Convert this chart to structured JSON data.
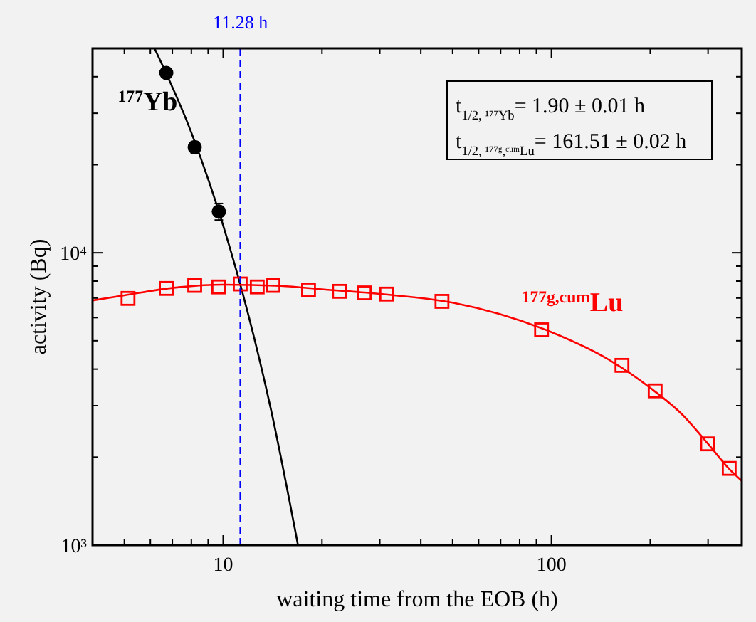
{
  "chart_data": {
    "type": "scatter",
    "xlabel": "waiting time from the EOB (h)",
    "ylabel": "activity (Bq)",
    "log": "xy",
    "xlim": [
      4,
      380
    ],
    "ylim": [
      1000,
      50000
    ],
    "xticks": [
      {
        "value": 5,
        "label": null
      },
      {
        "value": 6,
        "label": null
      },
      {
        "value": 7,
        "label": null
      },
      {
        "value": 8,
        "label": null
      },
      {
        "value": 9,
        "label": null
      },
      10,
      {
        "value": 20,
        "label": null
      },
      {
        "value": 30,
        "label": null
      },
      {
        "value": 40,
        "label": null
      },
      {
        "value": 50,
        "label": null
      },
      {
        "value": 60,
        "label": null
      },
      {
        "value": 70,
        "label": null
      },
      {
        "value": 80,
        "label": null
      },
      {
        "value": 90,
        "label": null
      },
      100,
      {
        "value": 200,
        "label": null
      },
      {
        "value": 300,
        "label": null
      }
    ],
    "yticks": [
      {
        "value": 1000,
        "label": "10³"
      },
      {
        "value": 2000,
        "label": null
      },
      {
        "value": 3000,
        "label": null
      },
      {
        "value": 4000,
        "label": null
      },
      {
        "value": 5000,
        "label": null
      },
      {
        "value": 6000,
        "label": null
      },
      {
        "value": 7000,
        "label": null
      },
      {
        "value": 8000,
        "label": null
      },
      {
        "value": 9000,
        "label": null
      },
      {
        "value": 10000,
        "label": "10⁴"
      },
      {
        "value": 20000,
        "label": null
      },
      {
        "value": 30000,
        "label": null
      },
      {
        "value": 40000,
        "label": null
      }
    ],
    "series": [
      {
        "name": "$^{177}$Yb",
        "marker": "circle",
        "color": "#000000",
        "x": [
          6.71,
          8.19,
          9.7
        ],
        "values": [
          41200,
          22960,
          13840
        ],
        "errors": [
          1200,
          1000,
          900
        ]
      },
      {
        "type": "line",
        "marker": "none",
        "color": "#000000",
        "x": [
          6.18,
          8,
          10,
          12,
          14,
          16.9
        ],
        "values": [
          50000,
          25750,
          12390,
          5980,
          2890,
          1000
        ]
      },
      {
        "name": "$^{177g,cum}$Lu",
        "marker": "square",
        "color": "#ff0000",
        "x": [
          5.13,
          6.71,
          8.19,
          9.7,
          11.27,
          12.7,
          14.19,
          18.2,
          22.6,
          26.9,
          31.5,
          46.4,
          93.3,
          164,
          207,
          299,
          348
        ],
        "values": [
          6980,
          7550,
          7730,
          7640,
          7820,
          7640,
          7730,
          7460,
          7380,
          7290,
          7220,
          6820,
          5450,
          4120,
          3370,
          2220,
          1830
        ]
      },
      {
        "type": "line",
        "marker": "none",
        "color": "#ff0000",
        "x": [
          4,
          5,
          7,
          10,
          15,
          20,
          30,
          50,
          100,
          150,
          200,
          250,
          300,
          350,
          380
        ],
        "values": [
          6870,
          7150,
          7580,
          7780,
          7700,
          7500,
          7230,
          6750,
          5350,
          4300,
          3450,
          2800,
          2220,
          1810,
          1660
        ]
      }
    ],
    "ref_lines": [
      {
        "axis": "x",
        "value": 11.28,
        "label": "11.28 h",
        "color": "#0000ff",
        "line_style": "dashed"
      }
    ],
    "annotations": [
      "t$_{1/2, ¹⁷⁷Yb}$= 1.90 ± 0.01 h",
      "t$_{1/2, ¹⁷⁷ᵍ,ᶜᵘᵐLu}$= 161.51 ± 0.02 h"
    ]
  }
}
